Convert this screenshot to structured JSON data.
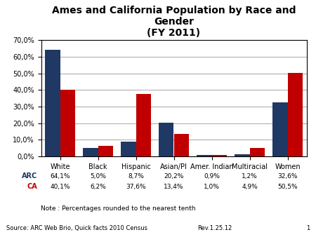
{
  "chart_data": {
    "type": "bar",
    "title": "Ames and California Population by Race and Gender\n(FY 2011)",
    "categories": [
      "White",
      "Black",
      "Hispanic",
      "Asian/PI",
      "Amer. Indian",
      "Multiracial",
      "Women"
    ],
    "series": [
      {
        "name": "ARC",
        "color": "#1F3864",
        "values": [
          64.1,
          5.0,
          8.7,
          20.2,
          0.9,
          1.2,
          32.6
        ],
        "value_labels": [
          "64,1%",
          "5,0%",
          "8,7%",
          "20,2%",
          "0,9%",
          "1,2%",
          "32,6%"
        ]
      },
      {
        "name": "CA",
        "color": "#C00000",
        "values": [
          40.1,
          6.2,
          37.6,
          13.4,
          1.0,
          4.9,
          50.5
        ],
        "value_labels": [
          "40,1%",
          "6,2%",
          "37,6%",
          "13,4%",
          "1,0%",
          "4,9%",
          "50,5%"
        ]
      }
    ],
    "ylim": [
      0,
      70
    ],
    "yticks": [
      {
        "value": 0,
        "label": "0,0%"
      },
      {
        "value": 10,
        "label": "10,0%"
      },
      {
        "value": 20,
        "label": "20,0%"
      },
      {
        "value": 30,
        "label": "30,0%"
      },
      {
        "value": 40,
        "label": "40,0%"
      },
      {
        "value": 50,
        "label": "50,0%"
      },
      {
        "value": 60,
        "label": "60,0%"
      },
      {
        "value": 70,
        "label": "70,0%"
      }
    ],
    "grid": true,
    "data_labels": true,
    "annotations": [
      "Note : Percentages rounded to the nearest tenth",
      "Source: ARC Web Brio, Quick facts 2010 Census",
      "Rev.1.25.12",
      "1"
    ]
  }
}
